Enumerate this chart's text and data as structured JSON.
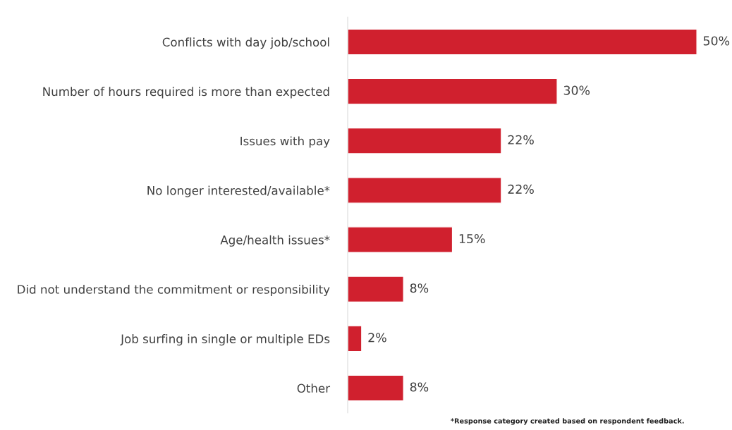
{
  "chart_data": {
    "type": "bar",
    "orientation": "horizontal",
    "categories": [
      "Conflicts with day job/school",
      "Number of hours required is more than expected",
      "Issues with pay",
      "No longer interested/available*",
      "Age/health issues*",
      "Did not understand the commitment or responsibility",
      "Job surfing in single or multiple EDs",
      "Other"
    ],
    "values": [
      50,
      30,
      22,
      22,
      15,
      8,
      2,
      8
    ],
    "value_labels": [
      "50%",
      "30%",
      "22%",
      "22%",
      "15%",
      "8%",
      "2%",
      "8%"
    ],
    "color": "#d0202e",
    "grid": false,
    "legend": false,
    "annotations": [
      "*Response category created based on respondent feedback."
    ]
  }
}
